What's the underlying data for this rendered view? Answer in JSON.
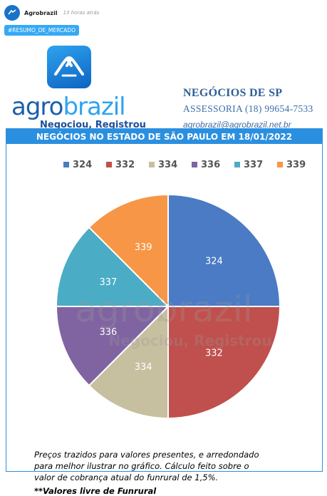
{
  "post": {
    "author": "Agrobrazil",
    "time": "13 horas atrás",
    "tag": "#RESUMO_DE_MERCADO"
  },
  "brand": {
    "name_part1": "agro",
    "name_part2": "brazil",
    "slogan": "Negociou, Registrou",
    "watermark_name": "agrobrazil",
    "watermark_slogan": "Negociou, Registrou"
  },
  "contact": {
    "title": "NEGÓCIOS DE SP",
    "phone": "ASSESSORIA (18) 99654-7533",
    "email": "agrobrazil@agrobrazil.net.br"
  },
  "chart_data": {
    "type": "pie",
    "title": "NEGÓCIOS NO ESTADO DE SÃO PAULO EM 18/01/2022",
    "categories": [
      "324",
      "332",
      "334",
      "336",
      "337",
      "339"
    ],
    "values": [
      25,
      25,
      12.5,
      12.5,
      12.5,
      12.5
    ],
    "colors": [
      "#4a7bc4",
      "#c0504d",
      "#c6bfa0",
      "#8064a2",
      "#4bacc6",
      "#f79646"
    ],
    "legend": "top"
  },
  "notes": {
    "text": "Preços trazidos para valores presentes, e arredondado para melhor ilustrar no gráfico. Cálculo feito sobre o valor de cobrança atual do funrural de 1,5%.",
    "bold": "**Valores livre de Funrural"
  }
}
